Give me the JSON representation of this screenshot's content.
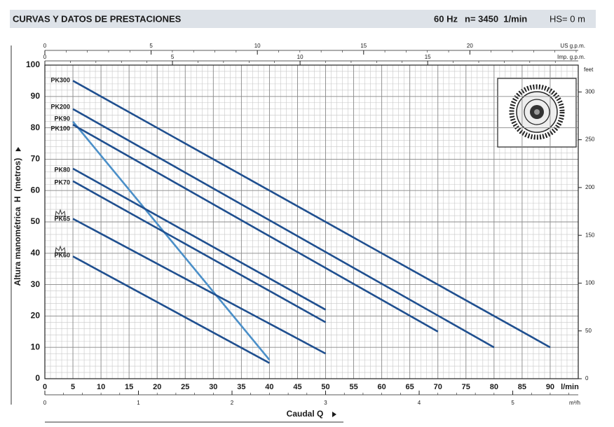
{
  "chart_data": {
    "type": "line",
    "title": "CURVAS Y DATOS DE PRESTACIONES",
    "header_info": [
      "60 Hz",
      "n= 3450  1/min",
      "HS= 0 m"
    ],
    "xlabel": "Caudal Q",
    "ylabel": "Altura manométrica  H  (metros)",
    "x_unit": "l/min",
    "xlim": [
      0,
      95
    ],
    "xticks": [
      0,
      5,
      10,
      15,
      20,
      25,
      30,
      35,
      40,
      45,
      50,
      55,
      60,
      65,
      70,
      75,
      80,
      85,
      90
    ],
    "ylim": [
      0,
      100
    ],
    "yticks": [
      0,
      10,
      20,
      30,
      40,
      50,
      60,
      70,
      80,
      90,
      100
    ],
    "y2_unit": "feet",
    "y2lim": [
      0,
      328.08
    ],
    "y2ticks": [
      0,
      50,
      100,
      150,
      200,
      250,
      300
    ],
    "top_axes": [
      {
        "unit": "US g.p.m.",
        "xlim": [
          0,
          25.1
        ],
        "xticks": [
          0,
          5,
          10,
          15,
          20
        ]
      },
      {
        "unit": "Imp. g.p.m.",
        "xlim": [
          0,
          20.9
        ],
        "xticks": [
          0,
          5,
          10,
          15
        ]
      }
    ],
    "bottom_axis": {
      "unit": "m³/h",
      "xlim": [
        0,
        5.7
      ],
      "xticks": [
        0,
        1,
        2,
        3,
        4,
        5
      ]
    },
    "grid": true,
    "series": [
      {
        "name": "PK300",
        "color": "#1f4f8f",
        "x": [
          5,
          90
        ],
        "values": [
          95,
          10
        ]
      },
      {
        "name": "PK200",
        "color": "#1f4f8f",
        "x": [
          5,
          80
        ],
        "values": [
          86,
          10
        ]
      },
      {
        "name": "PK90",
        "color": "#4b8fc8",
        "x": [
          5,
          40
        ],
        "values": [
          82,
          6
        ]
      },
      {
        "name": "PK100",
        "color": "#1f4f8f",
        "x": [
          5,
          70
        ],
        "values": [
          81,
          15
        ]
      },
      {
        "name": "PK80",
        "color": "#1f4f8f",
        "x": [
          5,
          50
        ],
        "values": [
          67,
          22
        ]
      },
      {
        "name": "PK70",
        "color": "#1f4f8f",
        "x": [
          5,
          50
        ],
        "values": [
          63,
          18
        ]
      },
      {
        "name": "PK65",
        "color": "#1f4f8f",
        "x": [
          5,
          50
        ],
        "values": [
          51,
          8
        ]
      },
      {
        "name": "PK60",
        "color": "#1f4f8f",
        "x": [
          5,
          40
        ],
        "values": [
          39,
          5
        ]
      }
    ]
  }
}
